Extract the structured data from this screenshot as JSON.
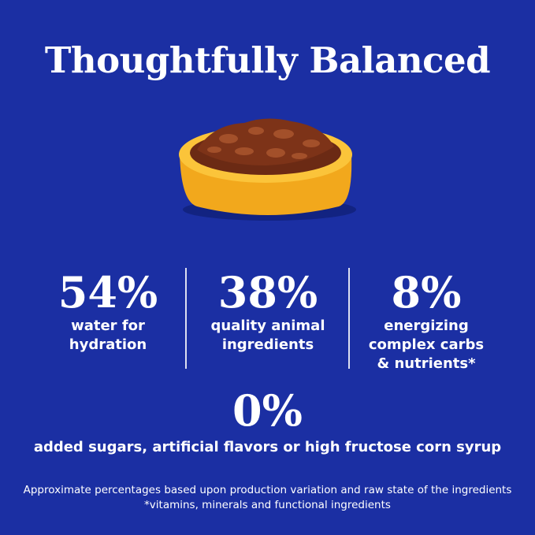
{
  "title": "Thoughtfully Balanced",
  "stats": [
    {
      "value": "54%",
      "lines": [
        "water for",
        "hydration"
      ]
    },
    {
      "value": "38%",
      "lines": [
        "quality animal",
        "ingredients"
      ]
    },
    {
      "value": "8%",
      "lines": [
        "energizing",
        "complex carbs",
        "& nutrients*"
      ]
    }
  ],
  "highlight": {
    "value": "0%",
    "text": "added sugars, artificial flavors or high fructose corn syrup"
  },
  "footnotes": [
    "Approximate percentages based upon production variation and raw state of the ingredients",
    "*vitamins, minerals and functional ingredients"
  ]
}
